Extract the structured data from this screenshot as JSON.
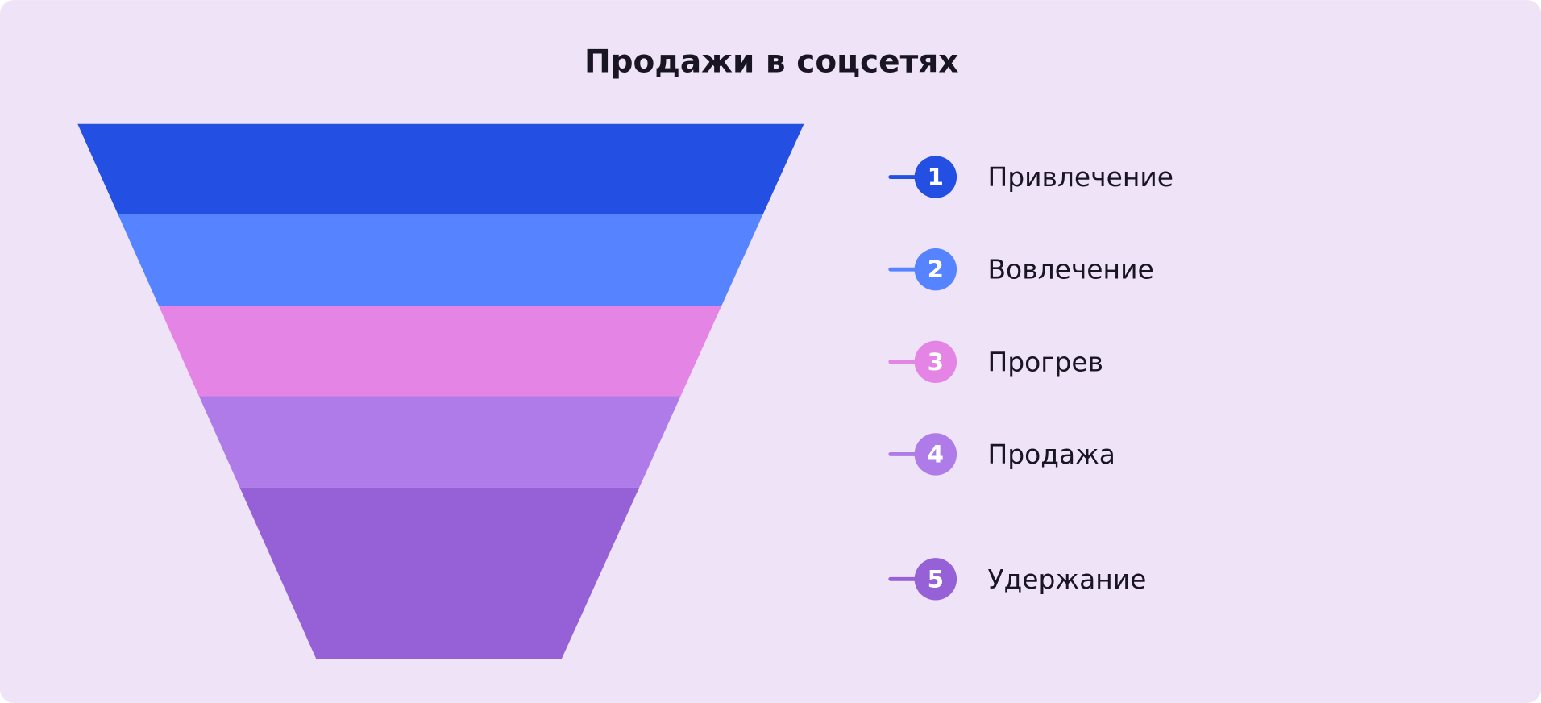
{
  "title": "Продажи в соцсетях",
  "stages": [
    {
      "number": "1",
      "label": "Привлечение",
      "color": "#2350e2"
    },
    {
      "number": "2",
      "label": "Вовлечение",
      "color": "#5683ff"
    },
    {
      "number": "3",
      "label": "Прогрев",
      "color": "#e485e6"
    },
    {
      "number": "4",
      "label": "Продажа",
      "color": "#ae7be8"
    },
    {
      "number": "5",
      "label": "Удержание",
      "color": "#9661d6"
    }
  ]
}
